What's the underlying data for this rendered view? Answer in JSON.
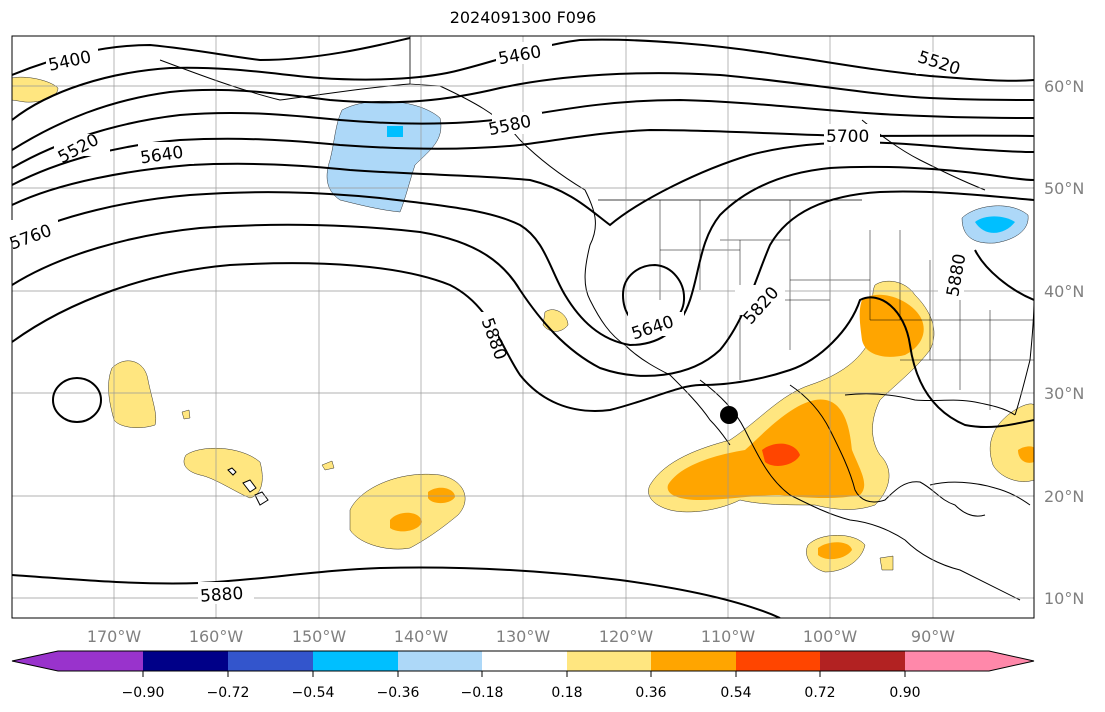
{
  "title": "2024091300 F096",
  "lon_ticks": [
    "170°W",
    "160°W",
    "150°W",
    "140°W",
    "130°W",
    "120°W",
    "110°W",
    "100°W",
    "90°W"
  ],
  "lat_ticks": [
    "60°N",
    "50°N",
    "40°N",
    "30°N",
    "20°N",
    "10°N"
  ],
  "contour_labels": [
    "5400",
    "5460",
    "5520",
    "5520",
    "5640",
    "5580",
    "5700",
    "5760",
    "5880",
    "5640",
    "5820",
    "5880",
    "5880"
  ],
  "colorbar": {
    "labels": [
      "−0.90",
      "−0.72",
      "−0.54",
      "−0.36",
      "−0.18",
      "0.18",
      "0.36",
      "0.54",
      "0.72",
      "0.90"
    ],
    "colors": [
      "#9933cc",
      "#000088",
      "#3355cc",
      "#00bfff",
      "#add8f8",
      "#ffffff",
      "#ffe680",
      "#ffa500",
      "#ff4500",
      "#b22222",
      "#ff88aa"
    ]
  },
  "colors": {
    "land": "#ffffff",
    "ocean": "#ffffff",
    "grid": "#999999",
    "contour": "#000000",
    "storm_marker": "#000000"
  }
}
